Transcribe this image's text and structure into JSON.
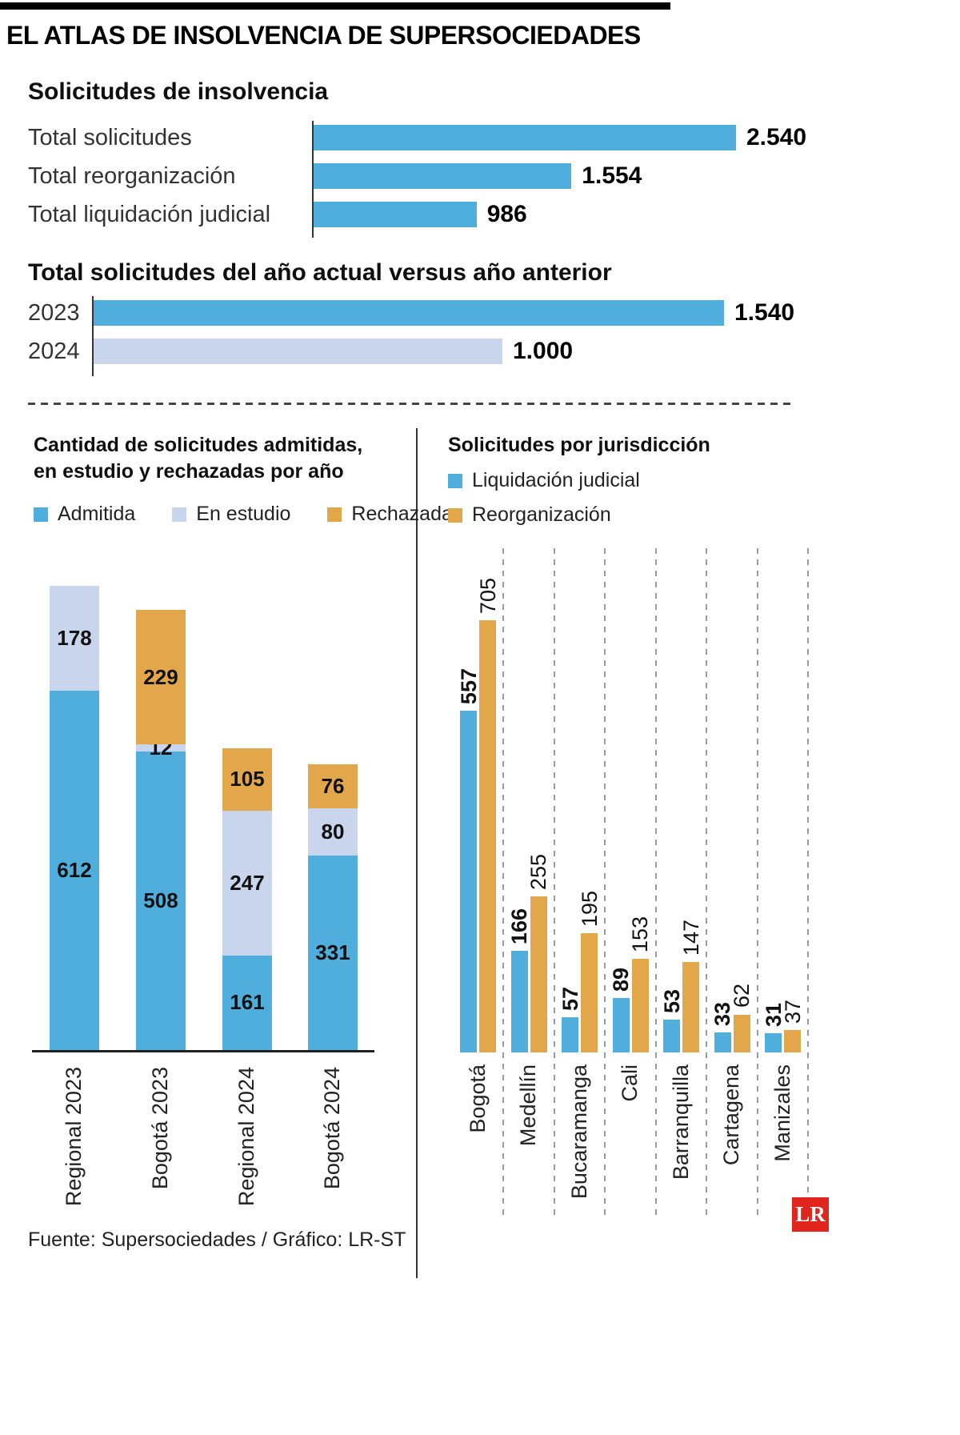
{
  "header": {
    "title": "EL ATLAS DE INSOLVENCIA DE SUPERSOCIEDADES"
  },
  "colors": {
    "blue": "#4FAEDB",
    "lavender": "#C9D5EC",
    "gold": "#E2A64B",
    "logo_red": "#E0251C"
  },
  "chart_data": [
    {
      "type": "bar",
      "orientation": "horizontal",
      "title": "Solicitudes de insolvencia",
      "categories": [
        "Total solicitudes",
        "Total reorganización",
        "Total liquidación judicial"
      ],
      "values": [
        2540,
        1554,
        986
      ],
      "value_labels": [
        "2.540",
        "1.554",
        "986"
      ],
      "xlim": [
        0,
        2540
      ],
      "bar_color": "blue",
      "grid": false
    },
    {
      "type": "bar",
      "orientation": "horizontal",
      "title": "Total solicitudes del año actual versus año anterior",
      "categories": [
        "2023",
        "2024"
      ],
      "values": [
        1540,
        1000
      ],
      "value_labels": [
        "1.540",
        "1.000"
      ],
      "xlim": [
        0,
        1540
      ],
      "bar_colors": [
        "blue",
        "lavender"
      ],
      "grid": false
    },
    {
      "type": "bar",
      "stacked": true,
      "orientation": "vertical",
      "title_lines": [
        "Cantidad de solicitudes admitidas,",
        "en estudio y rechazadas por año"
      ],
      "legend": [
        {
          "label": "Admitida",
          "color": "blue"
        },
        {
          "label": "En estudio",
          "color": "lavender"
        },
        {
          "label": "Rechazada",
          "color": "gold"
        }
      ],
      "legend_position": "top",
      "categories": [
        "Regional 2023",
        "Bogotá 2023",
        "Regional 2024",
        "Bogotá 2024"
      ],
      "series": [
        {
          "name": "Admitida",
          "color": "blue",
          "values": [
            612,
            508,
            161,
            331
          ]
        },
        {
          "name": "En estudio",
          "color": "lavender",
          "values": [
            178,
            12,
            247,
            80
          ]
        },
        {
          "name": "Rechazada",
          "color": "gold",
          "values": [
            0,
            229,
            105,
            76
          ]
        }
      ],
      "ylim": [
        0,
        854
      ],
      "grid": false
    },
    {
      "type": "bar",
      "grouped": true,
      "orientation": "vertical",
      "title": "Solicitudes por jurisdicción",
      "legend": [
        {
          "label": "Liquidación judicial",
          "color": "blue"
        },
        {
          "label": "Reorganización",
          "color": "gold"
        }
      ],
      "legend_position": "top",
      "categories": [
        "Bogotá",
        "Medellín",
        "Bucaramanga",
        "Cali",
        "Barranquilla",
        "Cartagena",
        "Manizales"
      ],
      "series": [
        {
          "name": "Liquidación judicial",
          "color": "blue",
          "values": [
            557,
            166,
            57,
            89,
            53,
            33,
            31
          ]
        },
        {
          "name": "Reorganización",
          "color": "gold",
          "values": [
            705,
            255,
            195,
            153,
            147,
            62,
            37
          ]
        }
      ],
      "ylim": [
        0,
        822
      ],
      "grid": "dashed-vertical"
    }
  ],
  "footer": {
    "source": "Fuente: Supersociedades / Gráfico: LR-ST",
    "logo_text": "LR"
  }
}
